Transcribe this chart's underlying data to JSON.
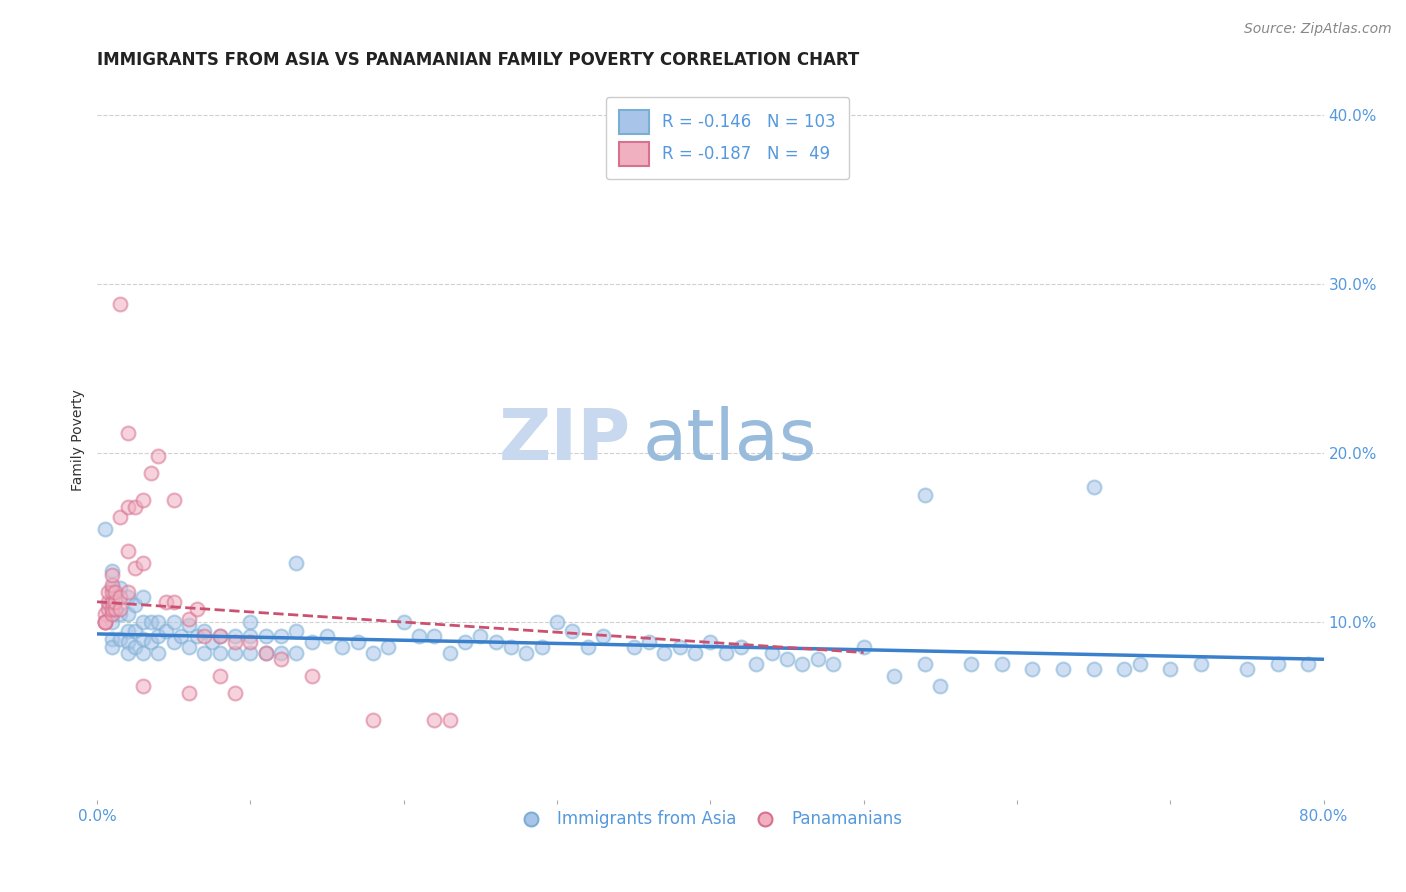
{
  "title": "IMMIGRANTS FROM ASIA VS PANAMANIAN FAMILY POVERTY CORRELATION CHART",
  "source": "Source: ZipAtlas.com",
  "ylabel": "Family Poverty",
  "xlim": [
    0.0,
    0.8
  ],
  "ylim": [
    -0.005,
    0.42
  ],
  "yticks": [
    0.1,
    0.2,
    0.3,
    0.4
  ],
  "ytick_labels": [
    "10.0%",
    "20.0%",
    "30.0%",
    "40.0%"
  ],
  "xticks": [
    0.0,
    0.1,
    0.2,
    0.3,
    0.4,
    0.5,
    0.6,
    0.7,
    0.8
  ],
  "xtick_labels": [
    "0.0%",
    "",
    "",
    "",
    "",
    "",
    "",
    "",
    "80.0%"
  ],
  "blue_R": -0.146,
  "blue_N": 103,
  "pink_R": -0.187,
  "pink_N": 49,
  "blue_color": "#a8c4e8",
  "blue_edge_color": "#7aafd4",
  "pink_color": "#f0b0c0",
  "pink_edge_color": "#d87090",
  "watermark_zip": "ZIP",
  "watermark_atlas": "atlas",
  "legend_label_blue": "Immigrants from Asia",
  "legend_label_pink": "Panamanians",
  "blue_scatter_x": [
    0.005,
    0.008,
    0.01,
    0.01,
    0.01,
    0.01,
    0.01,
    0.015,
    0.015,
    0.015,
    0.02,
    0.02,
    0.02,
    0.02,
    0.02,
    0.025,
    0.025,
    0.025,
    0.03,
    0.03,
    0.03,
    0.03,
    0.035,
    0.035,
    0.04,
    0.04,
    0.04,
    0.045,
    0.05,
    0.05,
    0.055,
    0.06,
    0.06,
    0.065,
    0.07,
    0.07,
    0.075,
    0.08,
    0.08,
    0.09,
    0.09,
    0.1,
    0.1,
    0.1,
    0.11,
    0.11,
    0.12,
    0.12,
    0.13,
    0.13,
    0.14,
    0.15,
    0.16,
    0.17,
    0.18,
    0.19,
    0.2,
    0.21,
    0.22,
    0.23,
    0.24,
    0.25,
    0.26,
    0.27,
    0.28,
    0.29,
    0.3,
    0.31,
    0.32,
    0.33,
    0.35,
    0.36,
    0.37,
    0.38,
    0.39,
    0.4,
    0.41,
    0.42,
    0.43,
    0.44,
    0.45,
    0.46,
    0.47,
    0.48,
    0.5,
    0.52,
    0.54,
    0.55,
    0.57,
    0.59,
    0.61,
    0.63,
    0.65,
    0.67,
    0.68,
    0.7,
    0.72,
    0.75,
    0.77,
    0.79,
    0.01,
    0.13,
    0.54,
    0.65
  ],
  "blue_scatter_y": [
    0.155,
    0.11,
    0.12,
    0.105,
    0.1,
    0.09,
    0.085,
    0.12,
    0.105,
    0.09,
    0.115,
    0.105,
    0.095,
    0.088,
    0.082,
    0.11,
    0.095,
    0.085,
    0.115,
    0.1,
    0.09,
    0.082,
    0.1,
    0.088,
    0.1,
    0.092,
    0.082,
    0.095,
    0.1,
    0.088,
    0.092,
    0.098,
    0.085,
    0.092,
    0.095,
    0.082,
    0.088,
    0.092,
    0.082,
    0.092,
    0.082,
    0.1,
    0.092,
    0.082,
    0.092,
    0.082,
    0.092,
    0.082,
    0.095,
    0.082,
    0.088,
    0.092,
    0.085,
    0.088,
    0.082,
    0.085,
    0.1,
    0.092,
    0.092,
    0.082,
    0.088,
    0.092,
    0.088,
    0.085,
    0.082,
    0.085,
    0.1,
    0.095,
    0.085,
    0.092,
    0.085,
    0.088,
    0.082,
    0.085,
    0.082,
    0.088,
    0.082,
    0.085,
    0.075,
    0.082,
    0.078,
    0.075,
    0.078,
    0.075,
    0.085,
    0.068,
    0.075,
    0.062,
    0.075,
    0.075,
    0.072,
    0.072,
    0.072,
    0.072,
    0.075,
    0.072,
    0.075,
    0.072,
    0.075,
    0.075,
    0.13,
    0.135,
    0.175,
    0.18
  ],
  "pink_scatter_x": [
    0.005,
    0.005,
    0.005,
    0.005,
    0.007,
    0.007,
    0.007,
    0.01,
    0.01,
    0.01,
    0.01,
    0.01,
    0.01,
    0.012,
    0.012,
    0.012,
    0.015,
    0.015,
    0.015,
    0.02,
    0.02,
    0.02,
    0.025,
    0.025,
    0.03,
    0.03,
    0.035,
    0.04,
    0.045,
    0.05,
    0.05,
    0.06,
    0.065,
    0.07,
    0.08,
    0.09,
    0.1,
    0.11,
    0.12,
    0.015,
    0.02,
    0.03,
    0.06,
    0.08,
    0.09,
    0.14,
    0.18,
    0.22,
    0.23
  ],
  "pink_scatter_y": [
    0.105,
    0.1,
    0.1,
    0.1,
    0.108,
    0.112,
    0.118,
    0.105,
    0.108,
    0.112,
    0.118,
    0.122,
    0.128,
    0.108,
    0.112,
    0.118,
    0.108,
    0.115,
    0.162,
    0.118,
    0.142,
    0.168,
    0.132,
    0.168,
    0.135,
    0.172,
    0.188,
    0.198,
    0.112,
    0.112,
    0.172,
    0.102,
    0.108,
    0.092,
    0.092,
    0.088,
    0.088,
    0.082,
    0.078,
    0.288,
    0.212,
    0.062,
    0.058,
    0.068,
    0.058,
    0.068,
    0.042,
    0.042,
    0.042
  ],
  "blue_trend_x": [
    0.0,
    0.8
  ],
  "blue_trend_y": [
    0.093,
    0.078
  ],
  "pink_trend_x": [
    0.0,
    0.5
  ],
  "pink_trend_y": [
    0.112,
    0.082
  ],
  "background_color": "#ffffff",
  "grid_color": "#d0d0d0",
  "tick_color": "#5599dd",
  "title_fontsize": 12,
  "axis_label_fontsize": 10,
  "tick_fontsize": 11,
  "legend_fontsize": 12,
  "source_fontsize": 10,
  "watermark_zip_fontsize": 52,
  "watermark_atlas_fontsize": 52,
  "watermark_zip_color": "#c8d8ee",
  "watermark_atlas_color": "#9abcdc",
  "scatter_size": 100,
  "scatter_alpha": 0.55,
  "scatter_linewidth": 1.5
}
